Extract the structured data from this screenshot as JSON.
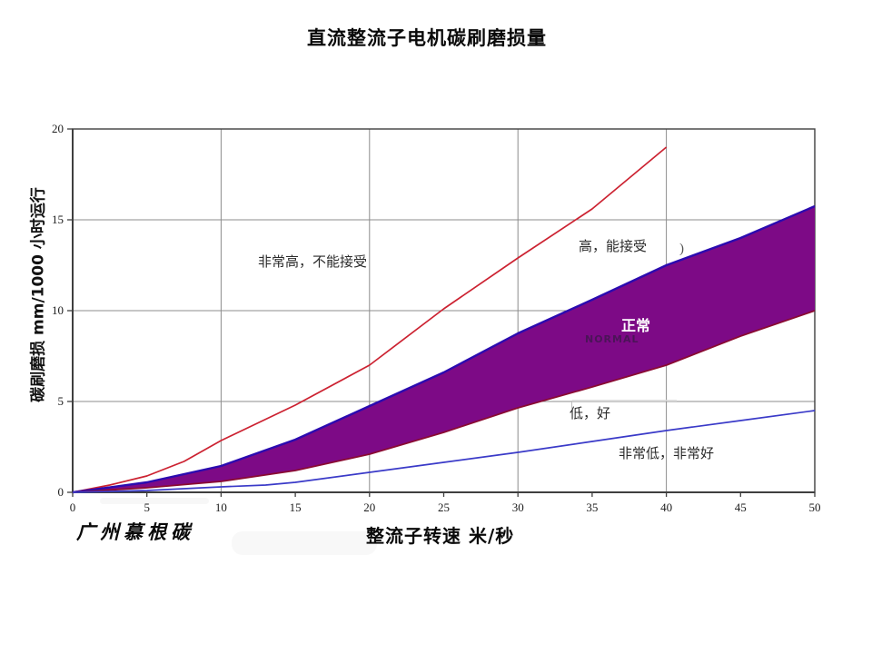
{
  "title": "直流整流子电机碳刷磨损量",
  "brand": "广州慕根碳",
  "colors": {
    "red_line": "#cc2231",
    "blue_line": "#3a3ac8",
    "band_fill": "#7d0a86",
    "band_top_edge": "#2b0bb0",
    "band_bottom_edge": "#8a0a32",
    "grid": "#8c8c8c",
    "axis": "#3f3f3f"
  },
  "chart_data": {
    "type": "area",
    "title": "直流整流子电机碳刷磨损量",
    "xlabel": "整流子转速 米/秒",
    "ylabel": "碳刷磨损 mm/1000 小时运行",
    "xlim": [
      0,
      50
    ],
    "ylim": [
      0,
      20
    ],
    "x_ticks": [
      0,
      5,
      10,
      15,
      20,
      25,
      30,
      35,
      40,
      45,
      50
    ],
    "y_ticks": [
      0,
      5,
      10,
      15,
      20
    ],
    "grid_x": [
      10,
      20,
      30,
      40
    ],
    "grid_y": [
      5,
      10,
      15
    ],
    "series": [
      {
        "name": "very-high-wear-line",
        "type": "line",
        "color": "#cc2231",
        "x": [
          0,
          2.5,
          5,
          7.5,
          10,
          15,
          20,
          25,
          30,
          35,
          40
        ],
        "y": [
          0,
          0.4,
          0.9,
          1.7,
          2.85,
          4.8,
          7.0,
          10.1,
          12.9,
          15.6,
          19.0
        ]
      },
      {
        "name": "normal-wear-band",
        "type": "band",
        "fill": "#7d0a86",
        "edge_top": "#2b0bb0",
        "edge_bottom": "#8a0a32",
        "x": [
          0,
          5,
          10,
          15,
          20,
          25,
          30,
          35,
          40,
          45,
          50
        ],
        "y_top": [
          0,
          0.55,
          1.45,
          2.9,
          4.75,
          6.6,
          8.75,
          10.6,
          12.5,
          14.0,
          15.75
        ],
        "y_bottom": [
          0,
          0.25,
          0.6,
          1.2,
          2.1,
          3.3,
          4.65,
          5.8,
          7.0,
          8.6,
          10.0
        ]
      },
      {
        "name": "very-low-wear-line",
        "type": "line",
        "color": "#3a3ac8",
        "x": [
          0,
          5,
          10,
          13,
          15,
          20,
          25,
          30,
          35,
          40,
          45,
          50
        ],
        "y": [
          0,
          0.1,
          0.3,
          0.4,
          0.55,
          1.1,
          1.65,
          2.2,
          2.8,
          3.4,
          3.95,
          4.5
        ]
      }
    ],
    "annotations": [
      {
        "id": "very-high",
        "text": "非常高，不能接受"
      },
      {
        "id": "high",
        "text": "高，能接受"
      },
      {
        "id": "paren-artifact",
        "text": ")"
      },
      {
        "id": "normal-cn",
        "text": "正常"
      },
      {
        "id": "normal-en",
        "text": "NORMAL"
      },
      {
        "id": "low",
        "text": "低，好"
      },
      {
        "id": "very-low",
        "text": "非常低，非常好"
      }
    ],
    "legend": "none",
    "grid": "on"
  }
}
